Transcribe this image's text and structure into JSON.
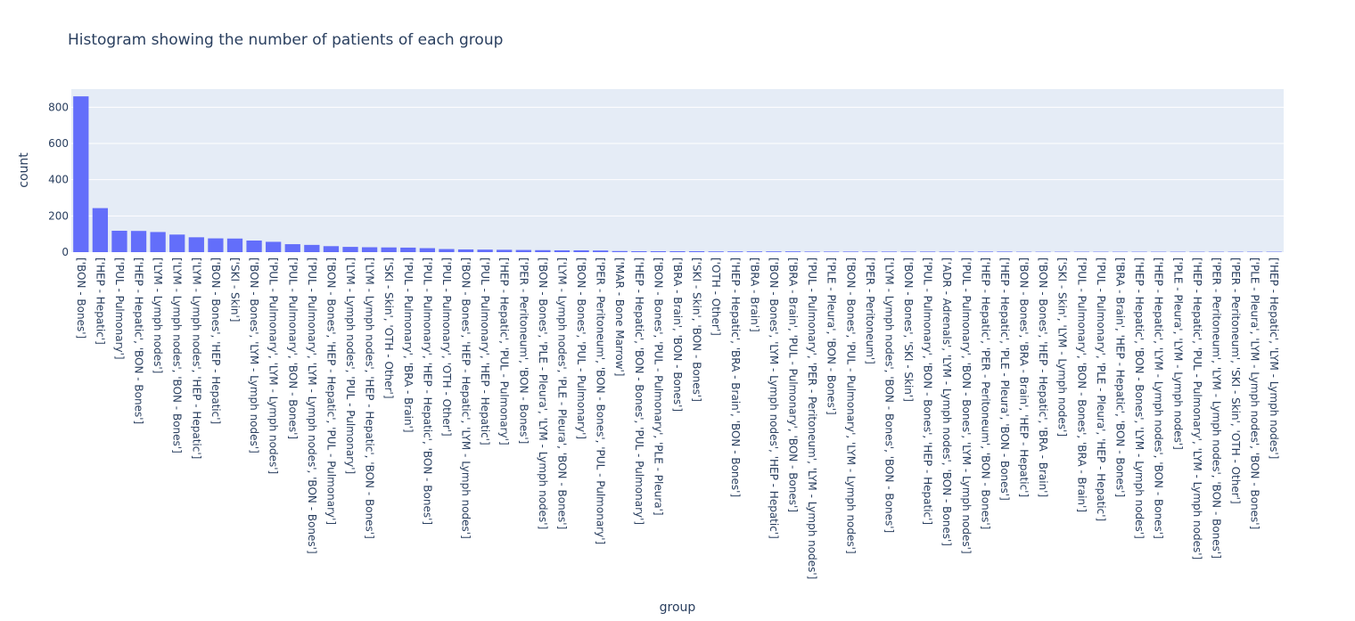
{
  "chart_data": {
    "type": "bar",
    "title": "Histogram showing the number of patients of each group",
    "xlabel": "group",
    "ylabel": "count",
    "ylim": [
      0,
      900
    ],
    "yticks": [
      0,
      200,
      400,
      600,
      800
    ],
    "grid": true,
    "bar_color": "#636efa",
    "plot_bg": "#e5ecf6",
    "categories": [
      "['BON - Bones']",
      "['HEP - Hepatic']",
      "['PUL - Pulmonary']",
      "['HEP - Hepatic', 'BON - Bones']",
      "['LYM - Lymph nodes']",
      "['LYM - Lymph nodes', 'BON - Bones']",
      "['LYM - Lymph nodes', 'HEP - Hepatic']",
      "['BON - Bones', 'HEP - Hepatic']",
      "['SKI - Skin']",
      "['BON - Bones', 'LYM - Lymph nodes']",
      "['PUL - Pulmonary', 'LYM - Lymph nodes']",
      "['PUL - Pulmonary', 'BON - Bones']",
      "['PUL - Pulmonary', 'LYM - Lymph nodes', 'BON - Bones']",
      "['BON - Bones', 'HEP - Hepatic', 'PUL - Pulmonary']",
      "['LYM - Lymph nodes', 'PUL - Pulmonary']",
      "['LYM - Lymph nodes', 'HEP - Hepatic', 'BON - Bones']",
      "['SKI - Skin', 'OTH - Other']",
      "['PUL - Pulmonary', 'BRA - Brain']",
      "['PUL - Pulmonary', 'HEP - Hepatic', 'BON - Bones']",
      "['PUL - Pulmonary', 'OTH - Other']",
      "['BON - Bones', 'HEP - Hepatic', 'LYM - Lymph nodes']",
      "['PUL - Pulmonary', 'HEP - Hepatic']",
      "['HEP - Hepatic', 'PUL - Pulmonary']",
      "['PER - Peritoneum', 'BON - Bones']",
      "['BON - Bones', 'PLE - Pleura', 'LYM - Lymph nodes']",
      "['LYM - Lymph nodes', 'PLE - Pleura', 'BON - Bones']",
      "['BON - Bones', 'PUL - Pulmonary']",
      "['PER - Peritoneum', 'BON - Bones', 'PUL - Pulmonary']",
      "['MAR - Bone Marrow']",
      "['HEP - Hepatic', 'BON - Bones', 'PUL - Pulmonary']",
      "['BON - Bones', 'PUL - Pulmonary', 'PLE - Pleura']",
      "['BRA - Brain', 'BON - Bones']",
      "['SKI - Skin', 'BON - Bones']",
      "['OTH - Other']",
      "['HEP - Hepatic', 'BRA - Brain', 'BON - Bones']",
      "['BRA - Brain']",
      "['BON - Bones', 'LYM - Lymph nodes', 'HEP - Hepatic']",
      "['BRA - Brain', 'PUL - Pulmonary', 'BON - Bones']",
      "['PUL - Pulmonary', 'PER - Peritoneum', 'LYM - Lymph nodes']",
      "['PLE - Pleura', 'BON - Bones']",
      "['BON - Bones', 'PUL - Pulmonary', 'LYM - Lymph nodes']",
      "['PER - Peritoneum']",
      "['LYM - Lymph nodes', 'BON - Bones', 'BON - Bones']",
      "['BON - Bones', 'SKI - Skin']",
      "['PUL - Pulmonary', 'BON - Bones', 'HEP - Hepatic']",
      "['ADR - Adrenals', 'LYM - Lymph nodes', 'BON - Bones']",
      "['PUL - Pulmonary', 'BON - Bones', 'LYM - Lymph nodes']",
      "['HEP - Hepatic', 'PER - Peritoneum', 'BON - Bones']",
      "['HEP - Hepatic', 'PLE - Pleura', 'BON - Bones']",
      "['BON - Bones', 'BRA - Brain', 'HEP - Hepatic']",
      "['BON - Bones', 'HEP - Hepatic', 'BRA - Brain']",
      "['SKI - Skin', 'LYM - Lymph nodes']",
      "['PUL - Pulmonary', 'BON - Bones', 'BRA - Brain']",
      "['PUL - Pulmonary', 'PLE - Pleura', 'HEP - Hepatic']",
      "['BRA - Brain', 'HEP - Hepatic', 'BON - Bones']",
      "['HEP - Hepatic', 'BON - Bones', 'LYM - Lymph nodes']",
      "['HEP - Hepatic', 'LYM - Lymph nodes', 'BON - Bones']",
      "['PLE - Pleura', 'LYM - Lymph nodes']",
      "['HEP - Hepatic', 'PUL - Pulmonary', 'LYM - Lymph nodes']",
      "['PER - Peritoneum', 'LYM - Lymph nodes', 'BON - Bones']",
      "['PER - Peritoneum', 'SKI - Skin', 'OTH - Other']",
      "['PLE - Pleura', 'LYM - Lymph nodes', 'BON - Bones']",
      "['HEP - Hepatic', 'LYM - Lymph nodes']"
    ],
    "values": [
      860,
      243,
      118,
      117,
      111,
      97,
      82,
      76,
      75,
      64,
      57,
      44,
      40,
      33,
      29,
      27,
      26,
      25,
      22,
      17,
      15,
      14,
      13,
      12,
      11,
      10,
      10,
      9,
      6,
      5,
      5,
      5,
      5,
      4,
      4,
      4,
      4,
      4,
      3,
      3,
      3,
      3,
      3,
      3,
      3,
      3,
      3,
      3,
      3,
      2,
      2,
      2,
      2,
      2,
      2,
      2,
      2,
      2,
      2,
      2,
      2,
      2,
      2
    ]
  }
}
